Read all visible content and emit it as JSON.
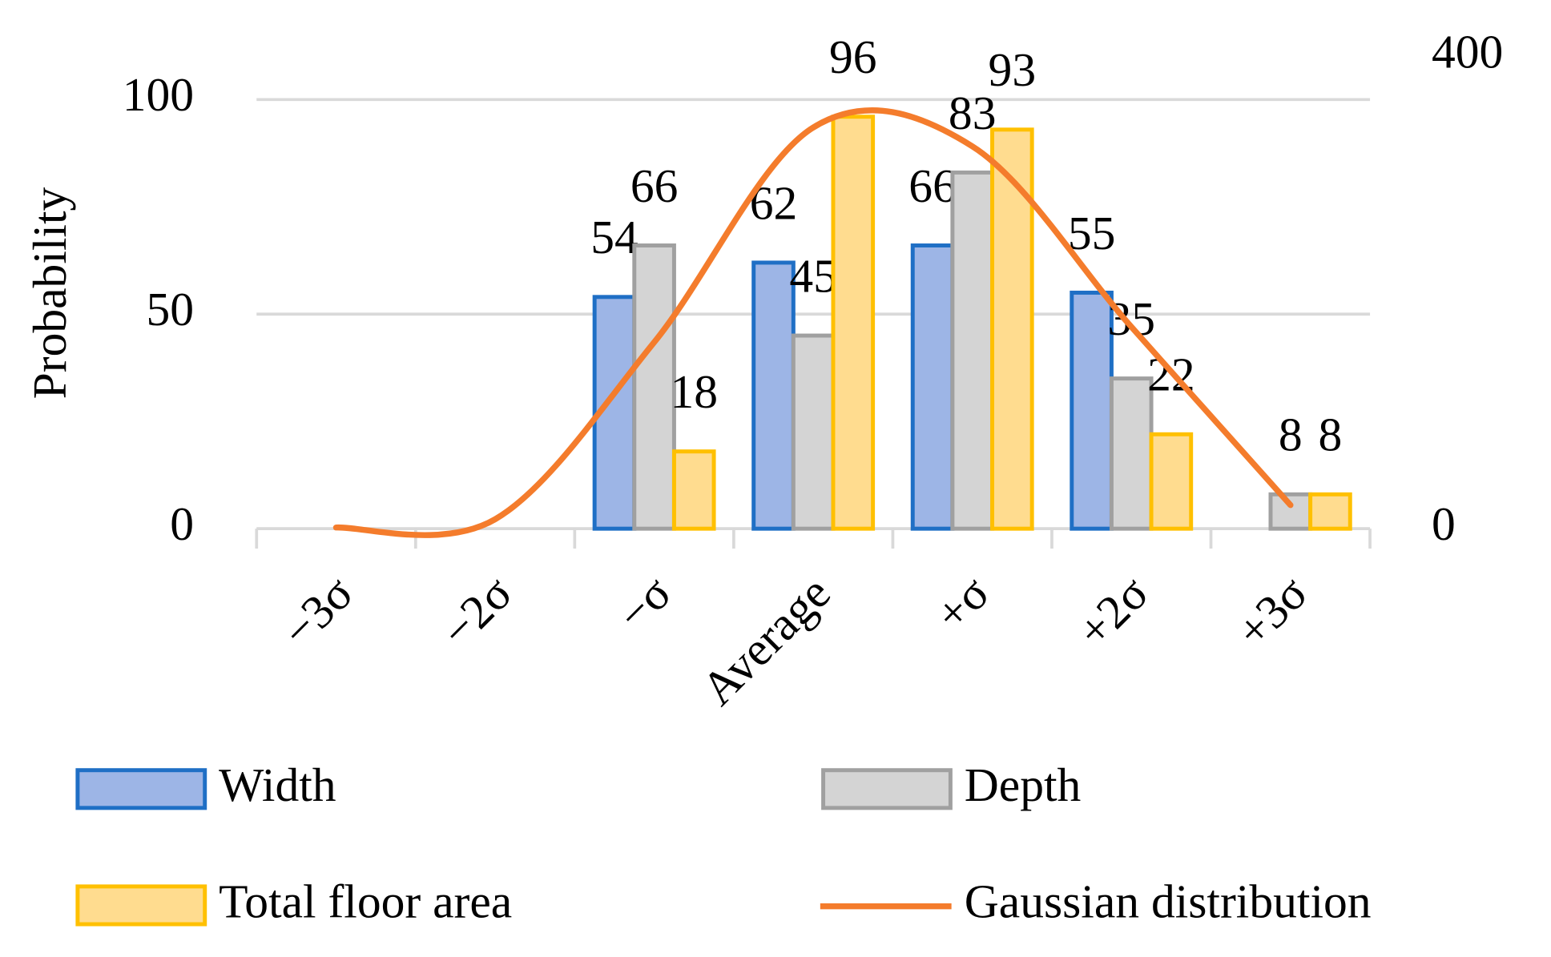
{
  "chart_data": {
    "type": "bar",
    "y_label": "Probability",
    "categories": [
      "−3σ",
      "−2σ",
      "−σ",
      "Average",
      "+σ",
      "+2σ",
      "+3σ"
    ],
    "series": [
      {
        "name": "Width",
        "type": "bar",
        "color": "#1f6fc5",
        "fill": "#9db5e6",
        "values": [
          null,
          null,
          54,
          62,
          66,
          55,
          null
        ]
      },
      {
        "name": "Depth",
        "type": "bar",
        "color": "#a0a0a0",
        "fill": "#d4d4d4",
        "values": [
          null,
          null,
          66,
          45,
          83,
          35,
          8
        ]
      },
      {
        "name": "Total floor area",
        "type": "bar",
        "color": "#ffc000",
        "fill": "#ffdc8f",
        "values": [
          null,
          null,
          18,
          96,
          93,
          22,
          8
        ]
      },
      {
        "name": "Gaussian distribution",
        "type": "line",
        "axis": "y2",
        "color": "#f47c2c",
        "values": [
          1,
          8,
          158,
          340,
          324,
          171,
          20
        ]
      }
    ],
    "ylim": [
      0,
      110
    ],
    "yticks": [
      0,
      50,
      100
    ],
    "y2lim": [
      0,
      400
    ],
    "y2ticks": [
      0,
      400
    ],
    "grid": true,
    "legend": "bottom"
  }
}
